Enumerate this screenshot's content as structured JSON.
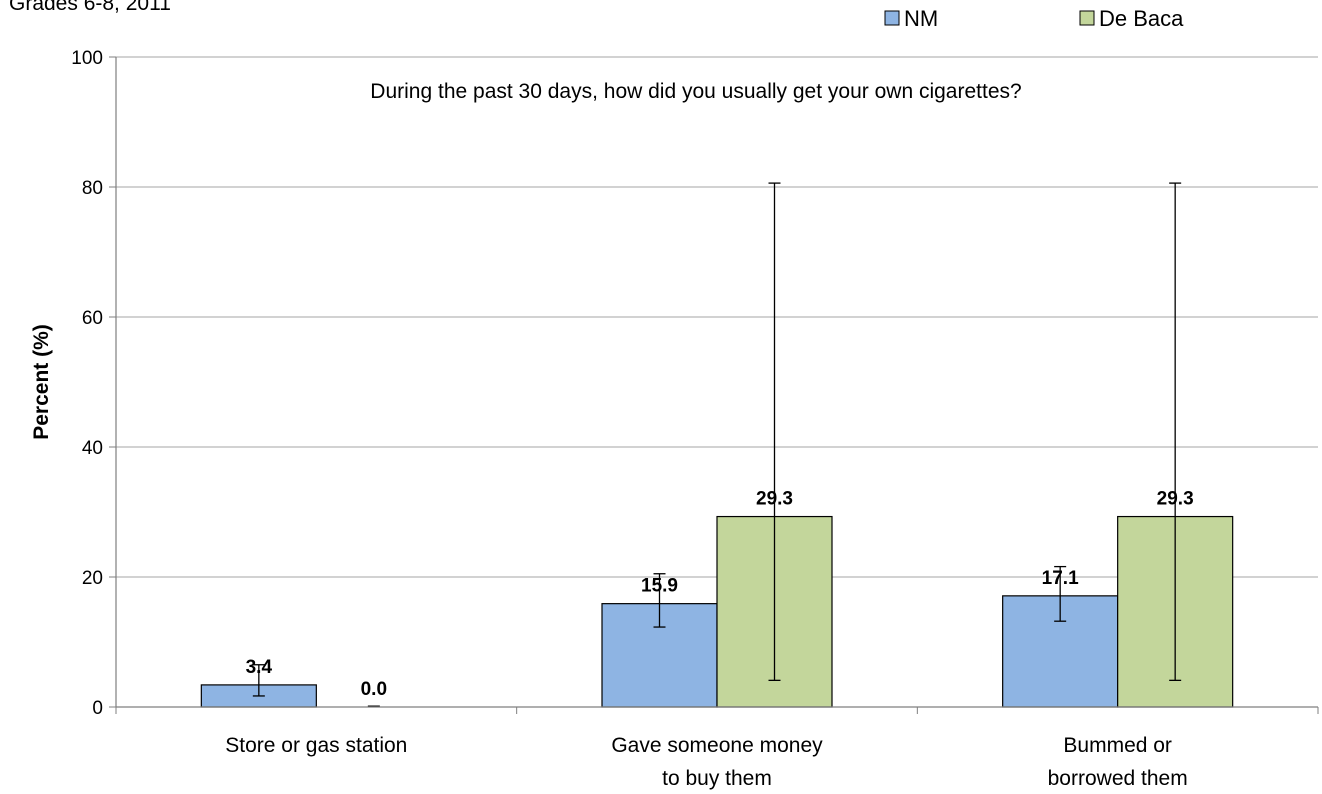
{
  "chart_data": {
    "type": "bar",
    "header_text": "Grades 6-8, 2011",
    "annotation": "During the past 30 days, how did you usually get your own cigarettes?",
    "ylabel": "Percent (%)",
    "xlabel": "",
    "ylim": [
      0,
      100
    ],
    "yticks": [
      0,
      20,
      40,
      60,
      80,
      100
    ],
    "grid": true,
    "legend_position": "top-right",
    "categories": [
      [
        "Store or gas station"
      ],
      [
        "Gave someone money",
        "to buy them"
      ],
      [
        "Bummed or",
        "borrowed them"
      ]
    ],
    "series": [
      {
        "name": "NM",
        "color": "#8EB4E3",
        "values": [
          3.4,
          15.9,
          17.1
        ],
        "labels": [
          "3.4",
          "15.9",
          "17.1"
        ],
        "ci_low": [
          1.7,
          12.3,
          13.2
        ],
        "ci_high": [
          6.5,
          20.5,
          21.6
        ]
      },
      {
        "name": "De Baca",
        "color": "#C3D69B",
        "values": [
          0.0,
          29.3,
          29.3
        ],
        "labels": [
          "0.0",
          "29.3",
          "29.3"
        ],
        "ci_low": [
          0.0,
          4.1,
          4.1
        ],
        "ci_high": [
          0.0,
          80.6,
          80.6
        ]
      }
    ]
  }
}
